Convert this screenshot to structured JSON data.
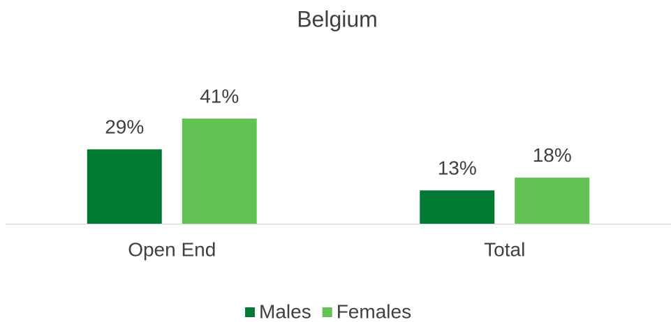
{
  "chart_data": {
    "type": "bar",
    "title": "Belgium",
    "categories": [
      "Open End",
      "Total"
    ],
    "series": [
      {
        "name": "Males",
        "color": "#007a33",
        "values": [
          29,
          13
        ],
        "value_labels": [
          "29%",
          "13%"
        ]
      },
      {
        "name": "Females",
        "color": "#62c354",
        "values": [
          41,
          18
        ],
        "value_labels": [
          "41%",
          "18%"
        ]
      }
    ],
    "legend": "bottom"
  }
}
